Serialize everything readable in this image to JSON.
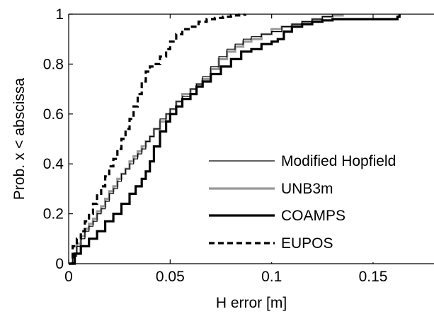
{
  "chart_data": {
    "type": "line",
    "title": "",
    "xlabel": "H error [m]",
    "ylabel": "Prob. x < abscissa",
    "xlim": [
      0,
      0.18
    ],
    "ylim": [
      0,
      1
    ],
    "xticks": [
      0,
      0.05,
      0.1,
      0.15
    ],
    "xtick_labels": [
      "0",
      "0.05",
      "0.1",
      "0.15"
    ],
    "yticks": [
      0,
      0.2,
      0.4,
      0.6,
      0.8,
      1
    ],
    "ytick_labels": [
      "0",
      "0.2",
      "0.4",
      "0.6",
      "0.8",
      "1"
    ],
    "grid": false,
    "legend_position": "bottom-right",
    "series": [
      {
        "name": "Modified Hopfield",
        "color": "#000000",
        "style": "thin-solid",
        "x": [
          0,
          0.002,
          0.004,
          0.006,
          0.008,
          0.01,
          0.012,
          0.014,
          0.016,
          0.018,
          0.02,
          0.022,
          0.024,
          0.026,
          0.028,
          0.03,
          0.032,
          0.034,
          0.036,
          0.038,
          0.04,
          0.042,
          0.045,
          0.048,
          0.05,
          0.053,
          0.056,
          0.06,
          0.063,
          0.066,
          0.07,
          0.074,
          0.078,
          0.082,
          0.086,
          0.09,
          0.095,
          0.1,
          0.105,
          0.11,
          0.115,
          0.12,
          0.125,
          0.13
        ],
        "y": [
          0,
          0.03,
          0.07,
          0.1,
          0.13,
          0.15,
          0.17,
          0.2,
          0.22,
          0.25,
          0.28,
          0.3,
          0.33,
          0.36,
          0.38,
          0.4,
          0.42,
          0.44,
          0.46,
          0.49,
          0.51,
          0.54,
          0.58,
          0.6,
          0.62,
          0.65,
          0.67,
          0.7,
          0.72,
          0.75,
          0.79,
          0.83,
          0.86,
          0.88,
          0.9,
          0.91,
          0.92,
          0.93,
          0.95,
          0.96,
          0.97,
          0.98,
          0.99,
          1.0
        ]
      },
      {
        "name": "UNB3m",
        "color": "#999999",
        "style": "thick-solid",
        "x": [
          0,
          0.002,
          0.004,
          0.006,
          0.008,
          0.01,
          0.012,
          0.014,
          0.016,
          0.018,
          0.02,
          0.022,
          0.024,
          0.026,
          0.028,
          0.03,
          0.032,
          0.034,
          0.036,
          0.038,
          0.04,
          0.042,
          0.045,
          0.048,
          0.05,
          0.053,
          0.056,
          0.06,
          0.063,
          0.066,
          0.07,
          0.074,
          0.078,
          0.082,
          0.086,
          0.09,
          0.095,
          0.1,
          0.105,
          0.11,
          0.115,
          0.12,
          0.125,
          0.13,
          0.135
        ],
        "y": [
          0,
          0.04,
          0.08,
          0.11,
          0.14,
          0.16,
          0.18,
          0.21,
          0.23,
          0.26,
          0.29,
          0.31,
          0.34,
          0.36,
          0.38,
          0.41,
          0.43,
          0.45,
          0.47,
          0.49,
          0.51,
          0.54,
          0.57,
          0.6,
          0.62,
          0.65,
          0.68,
          0.7,
          0.72,
          0.74,
          0.78,
          0.82,
          0.85,
          0.87,
          0.89,
          0.9,
          0.92,
          0.94,
          0.95,
          0.96,
          0.97,
          0.98,
          0.99,
          0.995,
          1.0
        ]
      },
      {
        "name": "COAMPS",
        "color": "#000000",
        "style": "thick-solid",
        "x": [
          0,
          0.003,
          0.006,
          0.01,
          0.014,
          0.018,
          0.022,
          0.026,
          0.03,
          0.033,
          0.036,
          0.038,
          0.04,
          0.042,
          0.045,
          0.048,
          0.05,
          0.053,
          0.056,
          0.06,
          0.063,
          0.066,
          0.07,
          0.075,
          0.08,
          0.085,
          0.09,
          0.095,
          0.1,
          0.103,
          0.106,
          0.11,
          0.115,
          0.12,
          0.125,
          0.13,
          0.14,
          0.15,
          0.158,
          0.162,
          0.163
        ],
        "y": [
          0,
          0.04,
          0.07,
          0.1,
          0.13,
          0.17,
          0.2,
          0.24,
          0.28,
          0.31,
          0.34,
          0.37,
          0.41,
          0.47,
          0.53,
          0.57,
          0.6,
          0.63,
          0.66,
          0.68,
          0.71,
          0.73,
          0.76,
          0.79,
          0.82,
          0.85,
          0.86,
          0.88,
          0.89,
          0.9,
          0.93,
          0.95,
          0.96,
          0.97,
          0.975,
          0.98,
          0.98,
          0.98,
          0.98,
          0.99,
          1.0
        ]
      },
      {
        "name": "EUPOS",
        "color": "#000000",
        "style": "thick-dashed",
        "x": [
          0,
          0.002,
          0.004,
          0.006,
          0.008,
          0.01,
          0.012,
          0.014,
          0.016,
          0.018,
          0.02,
          0.022,
          0.024,
          0.026,
          0.028,
          0.03,
          0.032,
          0.034,
          0.036,
          0.038,
          0.04,
          0.042,
          0.045,
          0.048,
          0.05,
          0.053,
          0.056,
          0.06,
          0.064,
          0.068,
          0.072,
          0.076,
          0.08,
          0.084,
          0.087
        ],
        "y": [
          0,
          0.07,
          0.1,
          0.13,
          0.17,
          0.2,
          0.24,
          0.28,
          0.31,
          0.35,
          0.39,
          0.42,
          0.46,
          0.5,
          0.54,
          0.58,
          0.63,
          0.68,
          0.73,
          0.77,
          0.79,
          0.8,
          0.83,
          0.86,
          0.89,
          0.92,
          0.94,
          0.95,
          0.97,
          0.98,
          0.985,
          0.99,
          0.995,
          0.998,
          1.0
        ]
      }
    ]
  }
}
